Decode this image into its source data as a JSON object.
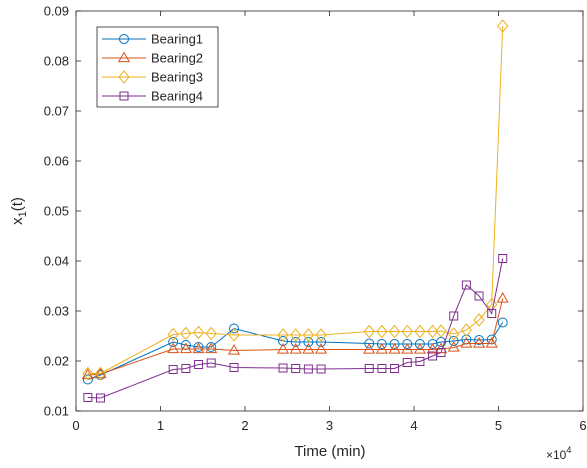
{
  "chart_data": {
    "type": "line",
    "title": "",
    "xlabel": "Time (min)",
    "ylabel_main": "x",
    "ylabel_sub": "1",
    "ylabel_tail": "(t)",
    "x_exponent_label": "×10",
    "x_exponent_power": "4",
    "xlim": [
      0,
      6
    ],
    "ylim": [
      0.01,
      0.09
    ],
    "xticks": [
      "0",
      "1",
      "2",
      "3",
      "4",
      "5",
      "6"
    ],
    "yticks": [
      "0.01",
      "0.02",
      "0.03",
      "0.04",
      "0.05",
      "0.06",
      "0.07",
      "0.08",
      "0.09"
    ],
    "grid": false,
    "legend_position": "top-left",
    "series": [
      {
        "name": "Bearing1",
        "color": "#0072BD",
        "marker": "circle",
        "x": [
          0.14,
          0.29,
          1.15,
          1.3,
          1.45,
          1.6,
          1.87,
          2.45,
          2.6,
          2.75,
          2.9,
          3.47,
          3.62,
          3.77,
          3.92,
          4.07,
          4.22,
          4.32,
          4.47,
          4.62,
          4.77,
          4.92,
          5.05
        ],
        "y": [
          0.0163,
          0.0172,
          0.0238,
          0.0232,
          0.0228,
          0.0228,
          0.0265,
          0.024,
          0.0238,
          0.0238,
          0.0238,
          0.0235,
          0.0234,
          0.0234,
          0.0234,
          0.0234,
          0.0234,
          0.0238,
          0.024,
          0.0243,
          0.0242,
          0.0243,
          0.0277
        ]
      },
      {
        "name": "Bearing2",
        "color": "#D95319",
        "marker": "triangle",
        "x": [
          0.14,
          0.29,
          1.15,
          1.3,
          1.45,
          1.6,
          1.87,
          2.45,
          2.6,
          2.75,
          2.9,
          3.47,
          3.62,
          3.77,
          3.92,
          4.07,
          4.22,
          4.32,
          4.47,
          4.62,
          4.77,
          4.92,
          5.05
        ],
        "y": [
          0.0172,
          0.0174,
          0.0224,
          0.0224,
          0.0224,
          0.0224,
          0.0221,
          0.0223,
          0.0223,
          0.0223,
          0.0223,
          0.0223,
          0.0223,
          0.0223,
          0.0223,
          0.0223,
          0.0223,
          0.0224,
          0.0227,
          0.0235,
          0.0235,
          0.0235,
          0.0325
        ]
      },
      {
        "name": "Bearing3",
        "color": "#EDB120",
        "marker": "diamond",
        "x": [
          0.14,
          0.29,
          1.15,
          1.3,
          1.45,
          1.6,
          1.87,
          2.45,
          2.6,
          2.75,
          2.9,
          3.47,
          3.62,
          3.77,
          3.92,
          4.07,
          4.22,
          4.32,
          4.47,
          4.62,
          4.77,
          4.92,
          5.05
        ],
        "y": [
          0.0175,
          0.0175,
          0.0253,
          0.0255,
          0.0257,
          0.0255,
          0.0252,
          0.0252,
          0.0252,
          0.0252,
          0.0252,
          0.0259,
          0.0259,
          0.0259,
          0.0259,
          0.0259,
          0.0259,
          0.026,
          0.0254,
          0.0262,
          0.0282,
          0.0313,
          0.087
        ]
      },
      {
        "name": "Bearing4",
        "color": "#7E2F8E",
        "marker": "square",
        "x": [
          0.14,
          0.29,
          1.15,
          1.3,
          1.45,
          1.6,
          1.87,
          2.45,
          2.6,
          2.75,
          2.9,
          3.47,
          3.62,
          3.77,
          3.92,
          4.07,
          4.22,
          4.32,
          4.47,
          4.62,
          4.77,
          4.92,
          5.05
        ],
        "y": [
          0.0127,
          0.0126,
          0.0183,
          0.0185,
          0.0193,
          0.0196,
          0.0187,
          0.0186,
          0.0185,
          0.0184,
          0.0184,
          0.0185,
          0.0185,
          0.0185,
          0.0197,
          0.0199,
          0.021,
          0.0217,
          0.029,
          0.0352,
          0.033,
          0.0295,
          0.0405
        ]
      }
    ]
  }
}
